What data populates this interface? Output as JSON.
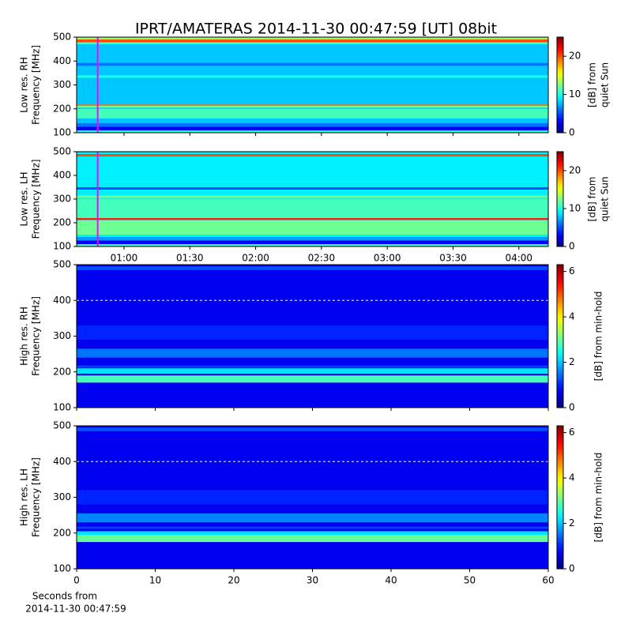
{
  "title": "IPRT/AMATERAS 2014-11-30 00:47:59 [UT]   08bit",
  "chart_data": [
    {
      "type": "heatmap",
      "ylabel": [
        "Low res. RH",
        "Frequency [MHz]"
      ],
      "colorbar_label": [
        "[dB] from",
        "quiet Sun"
      ],
      "clim": [
        0,
        25
      ],
      "cticks": [
        0,
        10,
        20
      ],
      "ylim": [
        100,
        500
      ],
      "yticks": [
        100,
        200,
        300,
        400,
        500
      ],
      "xlim": [
        38.4,
        253.4
      ],
      "xticks": [
        60,
        90,
        120,
        150,
        180,
        210,
        240
      ],
      "xtick_labels": false,
      "base_value": 8,
      "bands": [
        {
          "y0": 100,
          "y1": 110,
          "value": 10
        },
        {
          "y0": 110,
          "y1": 125,
          "value": 3
        },
        {
          "y0": 125,
          "y1": 140,
          "value": 6
        },
        {
          "y0": 160,
          "y1": 200,
          "value": 11
        },
        {
          "y0": 205,
          "y1": 212,
          "value": 13
        },
        {
          "y0": 213,
          "y1": 218,
          "value": 19
        },
        {
          "y0": 330,
          "y1": 340,
          "value": 10
        },
        {
          "y0": 380,
          "y1": 392,
          "value": 6
        },
        {
          "y0": 470,
          "y1": 478,
          "value": 11
        },
        {
          "y0": 480,
          "y1": 490,
          "value": 20
        },
        {
          "y0": 490,
          "y1": 500,
          "value": 13
        }
      ],
      "marker": {
        "x": 48,
        "color": "#ff00ff"
      }
    },
    {
      "type": "heatmap",
      "ylabel": [
        "Low res. LH",
        "Frequency [MHz]"
      ],
      "colorbar_label": [
        "[dB] from",
        "quiet Sun"
      ],
      "clim": [
        0,
        25
      ],
      "cticks": [
        0,
        10,
        20
      ],
      "ylim": [
        100,
        500
      ],
      "yticks": [
        100,
        200,
        300,
        400,
        500
      ],
      "xlim": [
        38.4,
        253.4
      ],
      "xticks": [
        {
          "value": 60,
          "label": "01:00"
        },
        {
          "value": 90,
          "label": "01:30"
        },
        {
          "value": 120,
          "label": "02:00"
        },
        {
          "value": 150,
          "label": "02:30"
        },
        {
          "value": 180,
          "label": "03:00"
        },
        {
          "value": 210,
          "label": "03:30"
        },
        {
          "value": 240,
          "label": "04:00"
        }
      ],
      "xtick_labels": true,
      "base_value": 9,
      "bands": [
        {
          "y0": 100,
          "y1": 110,
          "value": 11
        },
        {
          "y0": 110,
          "y1": 125,
          "value": 3
        },
        {
          "y0": 125,
          "y1": 140,
          "value": 7
        },
        {
          "y0": 150,
          "y1": 210,
          "value": 12
        },
        {
          "y0": 212,
          "y1": 220,
          "value": 21
        },
        {
          "y0": 220,
          "y1": 300,
          "value": 11
        },
        {
          "y0": 305,
          "y1": 315,
          "value": 12
        },
        {
          "y0": 340,
          "y1": 350,
          "value": 5
        },
        {
          "y0": 480,
          "y1": 490,
          "value": 20
        }
      ],
      "marker": {
        "x": 48,
        "color": "#ff00ff"
      }
    },
    {
      "type": "heatmap",
      "ylabel": [
        "High res. RH",
        "Frequency [MHz]"
      ],
      "colorbar_label": [
        "[dB] from min-hold"
      ],
      "clim": [
        0,
        6.3
      ],
      "cticks": [
        0,
        2,
        4,
        6
      ],
      "ylim": [
        100,
        500
      ],
      "yticks": [
        100,
        200,
        300,
        400,
        500
      ],
      "xlim": [
        0,
        60
      ],
      "xticks": [
        0,
        10,
        20,
        30,
        40,
        50,
        60
      ],
      "xtick_labels": false,
      "base_value": 0.7,
      "bands": [
        {
          "y0": 170,
          "y1": 190,
          "value": 2.8
        },
        {
          "y0": 195,
          "y1": 210,
          "value": 2.2
        },
        {
          "y0": 212,
          "y1": 218,
          "value": 1.2
        },
        {
          "y0": 240,
          "y1": 265,
          "value": 1.5
        },
        {
          "y0": 290,
          "y1": 330,
          "value": 1.0
        },
        {
          "y0": 485,
          "y1": 495,
          "value": 1.3
        }
      ],
      "hline": {
        "y": 400,
        "color": "#ffffff"
      }
    },
    {
      "type": "heatmap",
      "ylabel": [
        "High res. LH",
        "Frequency [MHz]"
      ],
      "colorbar_label": [
        "[dB] from min-hold"
      ],
      "clim": [
        0,
        6.3
      ],
      "cticks": [
        0,
        2,
        4,
        6
      ],
      "ylim": [
        100,
        500
      ],
      "yticks": [
        100,
        200,
        300,
        400,
        500
      ],
      "xlim": [
        0,
        60
      ],
      "xticks": [
        0,
        10,
        20,
        30,
        40,
        50,
        60
      ],
      "xtick_labels": true,
      "xlabel": [
        "Seconds from",
        "2014-11-30 00:47:59"
      ],
      "base_value": 0.7,
      "bands": [
        {
          "y0": 175,
          "y1": 195,
          "value": 3.0
        },
        {
          "y0": 195,
          "y1": 205,
          "value": 2.2
        },
        {
          "y0": 212,
          "y1": 218,
          "value": 1.2
        },
        {
          "y0": 230,
          "y1": 255,
          "value": 1.6
        },
        {
          "y0": 280,
          "y1": 320,
          "value": 1.0
        },
        {
          "y0": 485,
          "y1": 495,
          "value": 1.3
        }
      ],
      "hline": {
        "y": 400,
        "color": "#ffffff"
      }
    }
  ]
}
